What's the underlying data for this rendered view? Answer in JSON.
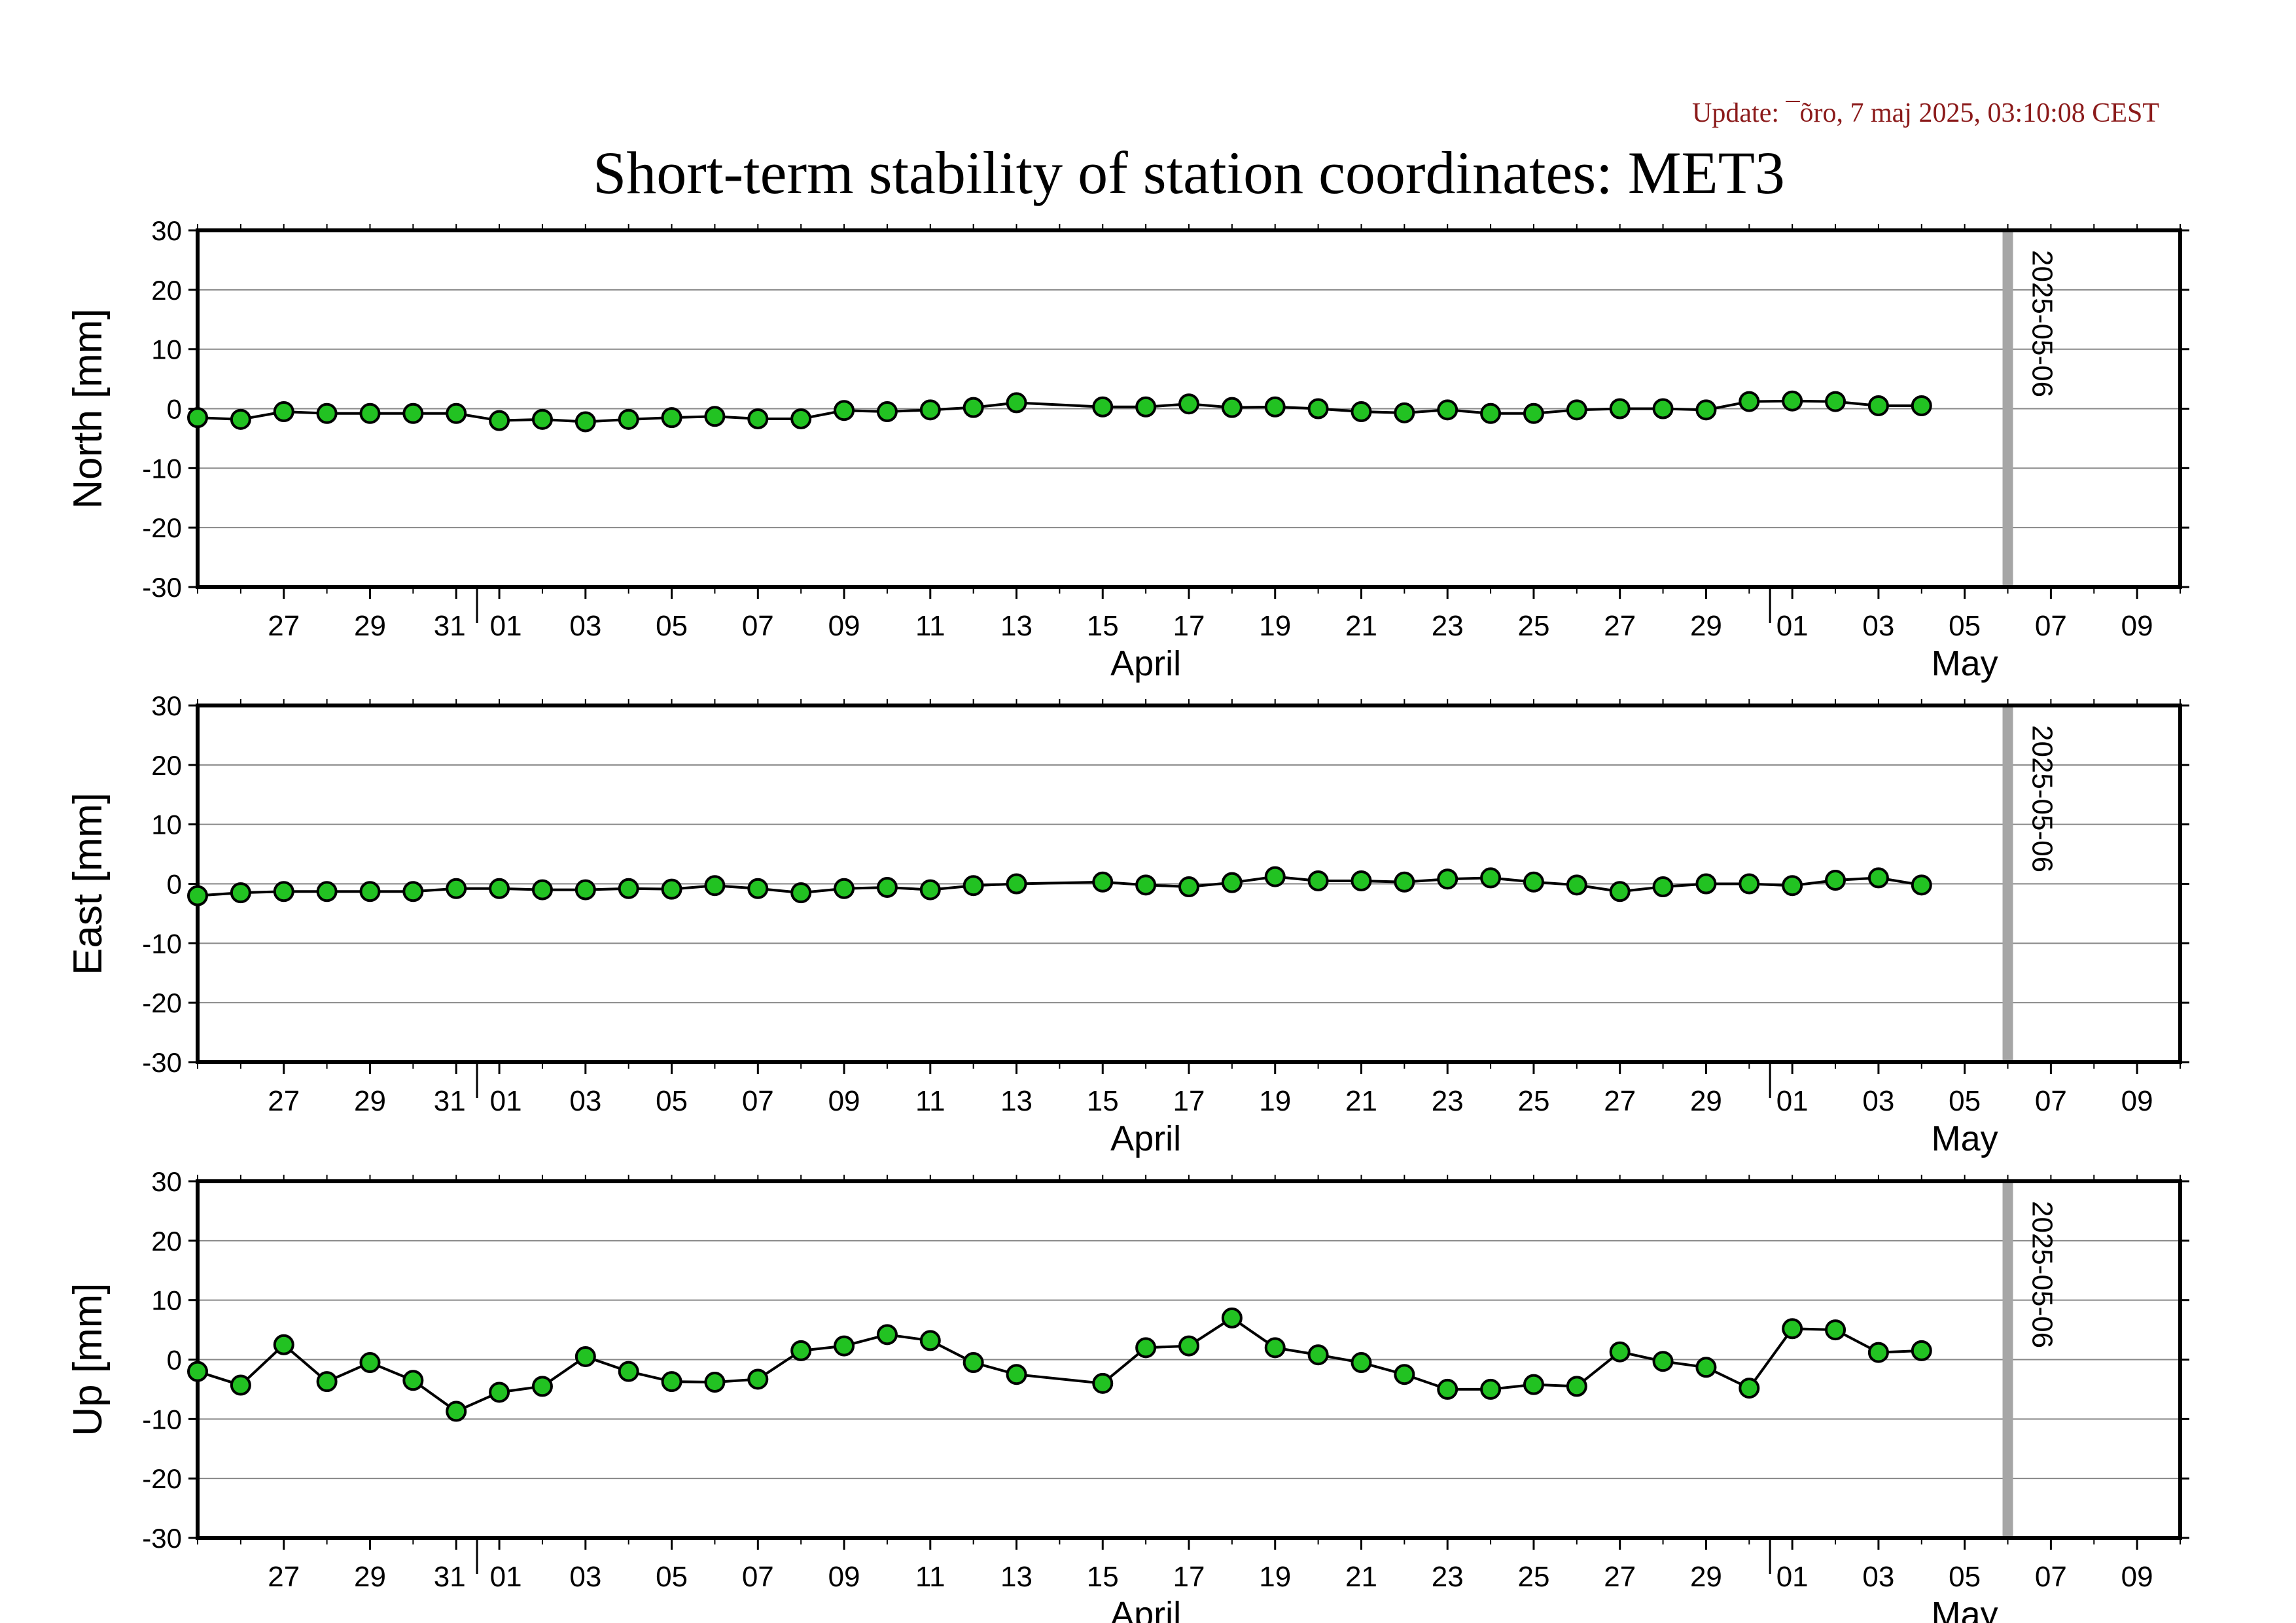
{
  "update_text": "Update: ¯õro, 7 maj 2025, 03:10:08 CEST",
  "colors": {
    "update": "#8b1a1a",
    "marker_fill": "#22c222",
    "marker_stroke": "#000000",
    "line": "#000000",
    "grid": "#888888",
    "vline": "#a6a6a6"
  },
  "chart_data": {
    "type": "line",
    "title": "Short-term stability of station coordinates: MET3",
    "x_range": [
      "2025-03-25",
      "2025-05-10"
    ],
    "vertical_marker": {
      "date": "2025-05-06",
      "label": "2025-05-06"
    },
    "x_ticks": [
      {
        "date": "2025-03-27",
        "label": "27"
      },
      {
        "date": "2025-03-29",
        "label": "29"
      },
      {
        "date": "2025-03-31",
        "label": "31"
      },
      {
        "date": "2025-04-01",
        "label": "01"
      },
      {
        "date": "2025-04-03",
        "label": "03"
      },
      {
        "date": "2025-04-05",
        "label": "05"
      },
      {
        "date": "2025-04-07",
        "label": "07"
      },
      {
        "date": "2025-04-09",
        "label": "09"
      },
      {
        "date": "2025-04-11",
        "label": "11"
      },
      {
        "date": "2025-04-13",
        "label": "13"
      },
      {
        "date": "2025-04-15",
        "label": "15"
      },
      {
        "date": "2025-04-17",
        "label": "17"
      },
      {
        "date": "2025-04-19",
        "label": "19"
      },
      {
        "date": "2025-04-21",
        "label": "21"
      },
      {
        "date": "2025-04-23",
        "label": "23"
      },
      {
        "date": "2025-04-25",
        "label": "25"
      },
      {
        "date": "2025-04-27",
        "label": "27"
      },
      {
        "date": "2025-04-29",
        "label": "29"
      },
      {
        "date": "2025-05-01",
        "label": "01"
      },
      {
        "date": "2025-05-03",
        "label": "03"
      },
      {
        "date": "2025-05-05",
        "label": "05"
      },
      {
        "date": "2025-05-07",
        "label": "07"
      },
      {
        "date": "2025-05-09",
        "label": "09"
      }
    ],
    "month_labels": [
      {
        "date": "2025-04-16",
        "label": "April"
      },
      {
        "date": "2025-05-05",
        "label": "May"
      }
    ],
    "panels": [
      {
        "ylabel": "North [mm]",
        "ylim": [
          -30,
          30
        ],
        "yticks": [
          30,
          20,
          10,
          0,
          -10,
          -20,
          -30
        ],
        "x": [
          "2025-03-25",
          "2025-03-26",
          "2025-03-27",
          "2025-03-28",
          "2025-03-29",
          "2025-03-30",
          "2025-03-31",
          "2025-04-01",
          "2025-04-02",
          "2025-04-03",
          "2025-04-04",
          "2025-04-05",
          "2025-04-06",
          "2025-04-07",
          "2025-04-08",
          "2025-04-09",
          "2025-04-10",
          "2025-04-11",
          "2025-04-12",
          "2025-04-13",
          "2025-04-15",
          "2025-04-16",
          "2025-04-17",
          "2025-04-18",
          "2025-04-19",
          "2025-04-20",
          "2025-04-21",
          "2025-04-22",
          "2025-04-23",
          "2025-04-24",
          "2025-04-25",
          "2025-04-26",
          "2025-04-27",
          "2025-04-28",
          "2025-04-29",
          "2025-04-30",
          "2025-05-01",
          "2025-05-02",
          "2025-05-03",
          "2025-05-04"
        ],
        "values": [
          -1.5,
          -1.8,
          -0.5,
          -0.8,
          -0.8,
          -0.8,
          -0.8,
          -2.0,
          -1.8,
          -2.2,
          -1.8,
          -1.5,
          -1.3,
          -1.7,
          -1.7,
          -0.3,
          -0.5,
          -0.2,
          0.2,
          1.0,
          0.3,
          0.3,
          0.8,
          0.2,
          0.3,
          0.0,
          -0.5,
          -0.7,
          -0.2,
          -0.8,
          -0.8,
          -0.2,
          0.0,
          0.0,
          -0.2,
          1.2,
          1.3,
          1.2,
          0.5,
          0.5
        ]
      },
      {
        "ylabel": "East [mm]",
        "ylim": [
          -30,
          30
        ],
        "yticks": [
          30,
          20,
          10,
          0,
          -10,
          -20,
          -30
        ],
        "x": [
          "2025-03-25",
          "2025-03-26",
          "2025-03-27",
          "2025-03-28",
          "2025-03-29",
          "2025-03-30",
          "2025-03-31",
          "2025-04-01",
          "2025-04-02",
          "2025-04-03",
          "2025-04-04",
          "2025-04-05",
          "2025-04-06",
          "2025-04-07",
          "2025-04-08",
          "2025-04-09",
          "2025-04-10",
          "2025-04-11",
          "2025-04-12",
          "2025-04-13",
          "2025-04-15",
          "2025-04-16",
          "2025-04-17",
          "2025-04-18",
          "2025-04-19",
          "2025-04-20",
          "2025-04-21",
          "2025-04-22",
          "2025-04-23",
          "2025-04-24",
          "2025-04-25",
          "2025-04-26",
          "2025-04-27",
          "2025-04-28",
          "2025-04-29",
          "2025-04-30",
          "2025-05-01",
          "2025-05-02",
          "2025-05-03",
          "2025-05-04"
        ],
        "values": [
          -2.0,
          -1.5,
          -1.3,
          -1.3,
          -1.3,
          -1.3,
          -0.8,
          -0.8,
          -1.0,
          -1.0,
          -0.8,
          -0.9,
          -0.3,
          -0.8,
          -1.5,
          -0.8,
          -0.6,
          -1.0,
          -0.3,
          0.0,
          0.3,
          -0.2,
          -0.5,
          0.2,
          1.2,
          0.5,
          0.5,
          0.3,
          0.8,
          1.0,
          0.3,
          -0.2,
          -1.3,
          -0.5,
          0.0,
          0.0,
          -0.3,
          0.6,
          1.0,
          -0.2
        ]
      },
      {
        "ylabel": "Up [mm]",
        "ylim": [
          -30,
          30
        ],
        "yticks": [
          30,
          20,
          10,
          0,
          -10,
          -20,
          -30
        ],
        "x": [
          "2025-03-25",
          "2025-03-26",
          "2025-03-27",
          "2025-03-28",
          "2025-03-29",
          "2025-03-30",
          "2025-03-31",
          "2025-04-01",
          "2025-04-02",
          "2025-04-03",
          "2025-04-04",
          "2025-04-05",
          "2025-04-06",
          "2025-04-07",
          "2025-04-08",
          "2025-04-09",
          "2025-04-10",
          "2025-04-11",
          "2025-04-12",
          "2025-04-13",
          "2025-04-15",
          "2025-04-16",
          "2025-04-17",
          "2025-04-18",
          "2025-04-19",
          "2025-04-20",
          "2025-04-21",
          "2025-04-22",
          "2025-04-23",
          "2025-04-24",
          "2025-04-25",
          "2025-04-26",
          "2025-04-27",
          "2025-04-28",
          "2025-04-29",
          "2025-04-30",
          "2025-05-01",
          "2025-05-02",
          "2025-05-03",
          "2025-05-04"
        ],
        "values": [
          -2.0,
          -4.3,
          2.5,
          -3.7,
          -0.5,
          -3.5,
          -8.7,
          -5.5,
          -4.5,
          0.5,
          -2.0,
          -3.7,
          -3.8,
          -3.3,
          1.5,
          2.3,
          4.2,
          3.2,
          -0.5,
          -2.5,
          -4.0,
          2.0,
          2.3,
          7.0,
          2.0,
          0.8,
          -0.5,
          -2.5,
          -5.0,
          -5.0,
          -4.2,
          -4.5,
          1.3,
          -0.3,
          -1.3,
          -4.8,
          5.2,
          5.0,
          1.2,
          1.5
        ]
      }
    ]
  }
}
